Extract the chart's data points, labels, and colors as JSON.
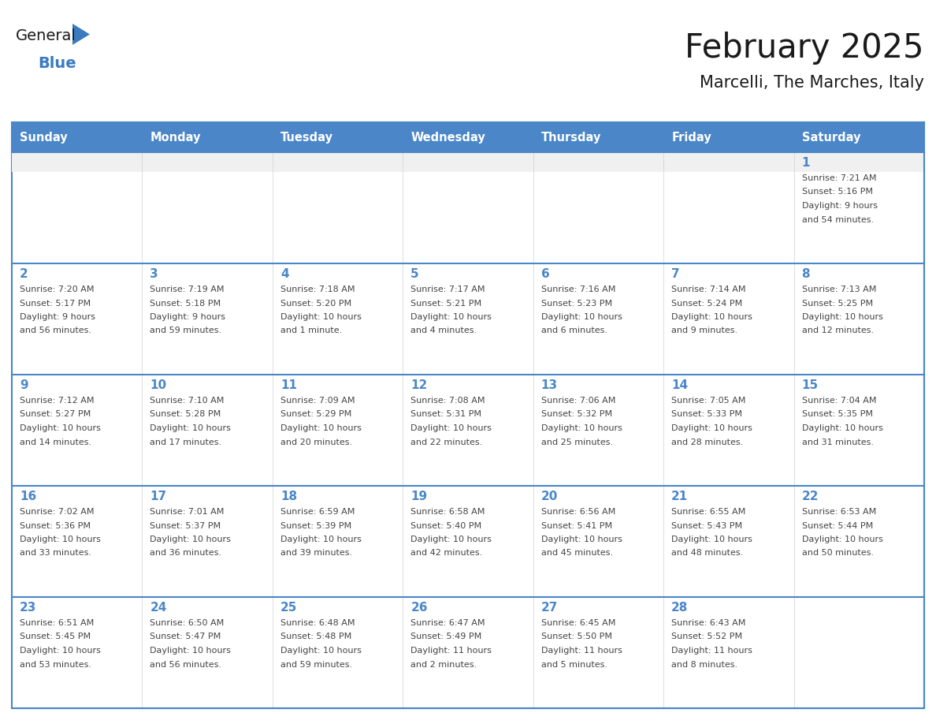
{
  "title": "February 2025",
  "subtitle": "Marcelli, The Marches, Italy",
  "days_of_week": [
    "Sunday",
    "Monday",
    "Tuesday",
    "Wednesday",
    "Thursday",
    "Friday",
    "Saturday"
  ],
  "header_bg": "#4a86c8",
  "header_text": "#ffffff",
  "cell_bg_white": "#ffffff",
  "cell_bg_gray": "#f0f0f0",
  "row_divider_color": "#4a86c8",
  "col_divider_color": "#d0d0d0",
  "outer_border_color": "#4a86c8",
  "day_num_color": "#4a86c8",
  "info_text_color": "#444444",
  "title_color": "#1a1a1a",
  "subtitle_color": "#1a1a1a",
  "logo_general_color": "#1a1a1a",
  "logo_blue_color": "#3a7bbf",
  "weeks": [
    [
      {
        "day": null,
        "info": ""
      },
      {
        "day": null,
        "info": ""
      },
      {
        "day": null,
        "info": ""
      },
      {
        "day": null,
        "info": ""
      },
      {
        "day": null,
        "info": ""
      },
      {
        "day": null,
        "info": ""
      },
      {
        "day": 1,
        "info": "Sunrise: 7:21 AM\nSunset: 5:16 PM\nDaylight: 9 hours\nand 54 minutes."
      }
    ],
    [
      {
        "day": 2,
        "info": "Sunrise: 7:20 AM\nSunset: 5:17 PM\nDaylight: 9 hours\nand 56 minutes."
      },
      {
        "day": 3,
        "info": "Sunrise: 7:19 AM\nSunset: 5:18 PM\nDaylight: 9 hours\nand 59 minutes."
      },
      {
        "day": 4,
        "info": "Sunrise: 7:18 AM\nSunset: 5:20 PM\nDaylight: 10 hours\nand 1 minute."
      },
      {
        "day": 5,
        "info": "Sunrise: 7:17 AM\nSunset: 5:21 PM\nDaylight: 10 hours\nand 4 minutes."
      },
      {
        "day": 6,
        "info": "Sunrise: 7:16 AM\nSunset: 5:23 PM\nDaylight: 10 hours\nand 6 minutes."
      },
      {
        "day": 7,
        "info": "Sunrise: 7:14 AM\nSunset: 5:24 PM\nDaylight: 10 hours\nand 9 minutes."
      },
      {
        "day": 8,
        "info": "Sunrise: 7:13 AM\nSunset: 5:25 PM\nDaylight: 10 hours\nand 12 minutes."
      }
    ],
    [
      {
        "day": 9,
        "info": "Sunrise: 7:12 AM\nSunset: 5:27 PM\nDaylight: 10 hours\nand 14 minutes."
      },
      {
        "day": 10,
        "info": "Sunrise: 7:10 AM\nSunset: 5:28 PM\nDaylight: 10 hours\nand 17 minutes."
      },
      {
        "day": 11,
        "info": "Sunrise: 7:09 AM\nSunset: 5:29 PM\nDaylight: 10 hours\nand 20 minutes."
      },
      {
        "day": 12,
        "info": "Sunrise: 7:08 AM\nSunset: 5:31 PM\nDaylight: 10 hours\nand 22 minutes."
      },
      {
        "day": 13,
        "info": "Sunrise: 7:06 AM\nSunset: 5:32 PM\nDaylight: 10 hours\nand 25 minutes."
      },
      {
        "day": 14,
        "info": "Sunrise: 7:05 AM\nSunset: 5:33 PM\nDaylight: 10 hours\nand 28 minutes."
      },
      {
        "day": 15,
        "info": "Sunrise: 7:04 AM\nSunset: 5:35 PM\nDaylight: 10 hours\nand 31 minutes."
      }
    ],
    [
      {
        "day": 16,
        "info": "Sunrise: 7:02 AM\nSunset: 5:36 PM\nDaylight: 10 hours\nand 33 minutes."
      },
      {
        "day": 17,
        "info": "Sunrise: 7:01 AM\nSunset: 5:37 PM\nDaylight: 10 hours\nand 36 minutes."
      },
      {
        "day": 18,
        "info": "Sunrise: 6:59 AM\nSunset: 5:39 PM\nDaylight: 10 hours\nand 39 minutes."
      },
      {
        "day": 19,
        "info": "Sunrise: 6:58 AM\nSunset: 5:40 PM\nDaylight: 10 hours\nand 42 minutes."
      },
      {
        "day": 20,
        "info": "Sunrise: 6:56 AM\nSunset: 5:41 PM\nDaylight: 10 hours\nand 45 minutes."
      },
      {
        "day": 21,
        "info": "Sunrise: 6:55 AM\nSunset: 5:43 PM\nDaylight: 10 hours\nand 48 minutes."
      },
      {
        "day": 22,
        "info": "Sunrise: 6:53 AM\nSunset: 5:44 PM\nDaylight: 10 hours\nand 50 minutes."
      }
    ],
    [
      {
        "day": 23,
        "info": "Sunrise: 6:51 AM\nSunset: 5:45 PM\nDaylight: 10 hours\nand 53 minutes."
      },
      {
        "day": 24,
        "info": "Sunrise: 6:50 AM\nSunset: 5:47 PM\nDaylight: 10 hours\nand 56 minutes."
      },
      {
        "day": 25,
        "info": "Sunrise: 6:48 AM\nSunset: 5:48 PM\nDaylight: 10 hours\nand 59 minutes."
      },
      {
        "day": 26,
        "info": "Sunrise: 6:47 AM\nSunset: 5:49 PM\nDaylight: 11 hours\nand 2 minutes."
      },
      {
        "day": 27,
        "info": "Sunrise: 6:45 AM\nSunset: 5:50 PM\nDaylight: 11 hours\nand 5 minutes."
      },
      {
        "day": 28,
        "info": "Sunrise: 6:43 AM\nSunset: 5:52 PM\nDaylight: 11 hours\nand 8 minutes."
      },
      {
        "day": null,
        "info": ""
      }
    ]
  ],
  "fig_width": 11.88,
  "fig_height": 9.18,
  "dpi": 100
}
